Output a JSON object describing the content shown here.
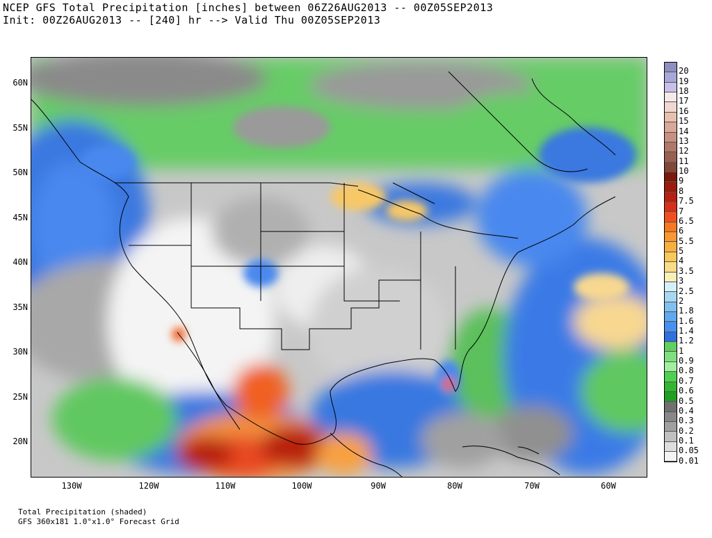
{
  "title": {
    "line1": "NCEP GFS Total Precipitation [inches] between 06Z26AUG2013 -- 00Z05SEP2013",
    "line2": "Init: 00Z26AUG2013 -- [240] hr --> Valid Thu 00Z05SEP2013"
  },
  "map": {
    "lat_labels": [
      "60N",
      "55N",
      "50N",
      "45N",
      "40N",
      "35N",
      "30N",
      "25N",
      "20N"
    ],
    "lon_labels": [
      "130W",
      "120W",
      "110W",
      "100W",
      "90W",
      "80W",
      "70W",
      "60W"
    ],
    "lat_range": [
      16,
      63
    ],
    "lon_range": [
      -135,
      -55
    ]
  },
  "colorbar": {
    "levels": [
      "20",
      "19",
      "18",
      "17",
      "16",
      "15",
      "14",
      "13",
      "12",
      "11",
      "10",
      "9",
      "8",
      "7.5",
      "7",
      "6.5",
      "6",
      "5.5",
      "5",
      "4",
      "3.5",
      "3",
      "2.5",
      "2",
      "1.8",
      "1.6",
      "1.4",
      "1.2",
      "1",
      "0.9",
      "0.8",
      "0.7",
      "0.6",
      "0.5",
      "0.4",
      "0.3",
      "0.2",
      "0.1",
      "0.05",
      "0.01"
    ],
    "colors": [
      "#8e8ec0",
      "#a8a8d8",
      "#c8c0e8",
      "#f4eaea",
      "#f0d8d0",
      "#e8c0b0",
      "#d8a898",
      "#c89080",
      "#b07868",
      "#986050",
      "#804838",
      "#7a1a0a",
      "#9a1c0a",
      "#b82010",
      "#d83018",
      "#f05020",
      "#f87820",
      "#f89830",
      "#f8b040",
      "#f8c858",
      "#fadc88",
      "#fbefb8",
      "#d4f0f8",
      "#a8d8f0",
      "#80c0f0",
      "#60a8f0",
      "#4890f0",
      "#3070e0",
      "#60d060",
      "#80e080",
      "#a0f0a0",
      "#50d050",
      "#30b830",
      "#20a020",
      "#707070",
      "#888888",
      "#a0a0a0",
      "#c0c0c0",
      "#dedede",
      "#f4f4f4"
    ]
  },
  "footer": {
    "line1": "Total Precipitation (shaded)",
    "line2": "GFS 360x181 1.0°x1.0° Forecast Grid"
  }
}
